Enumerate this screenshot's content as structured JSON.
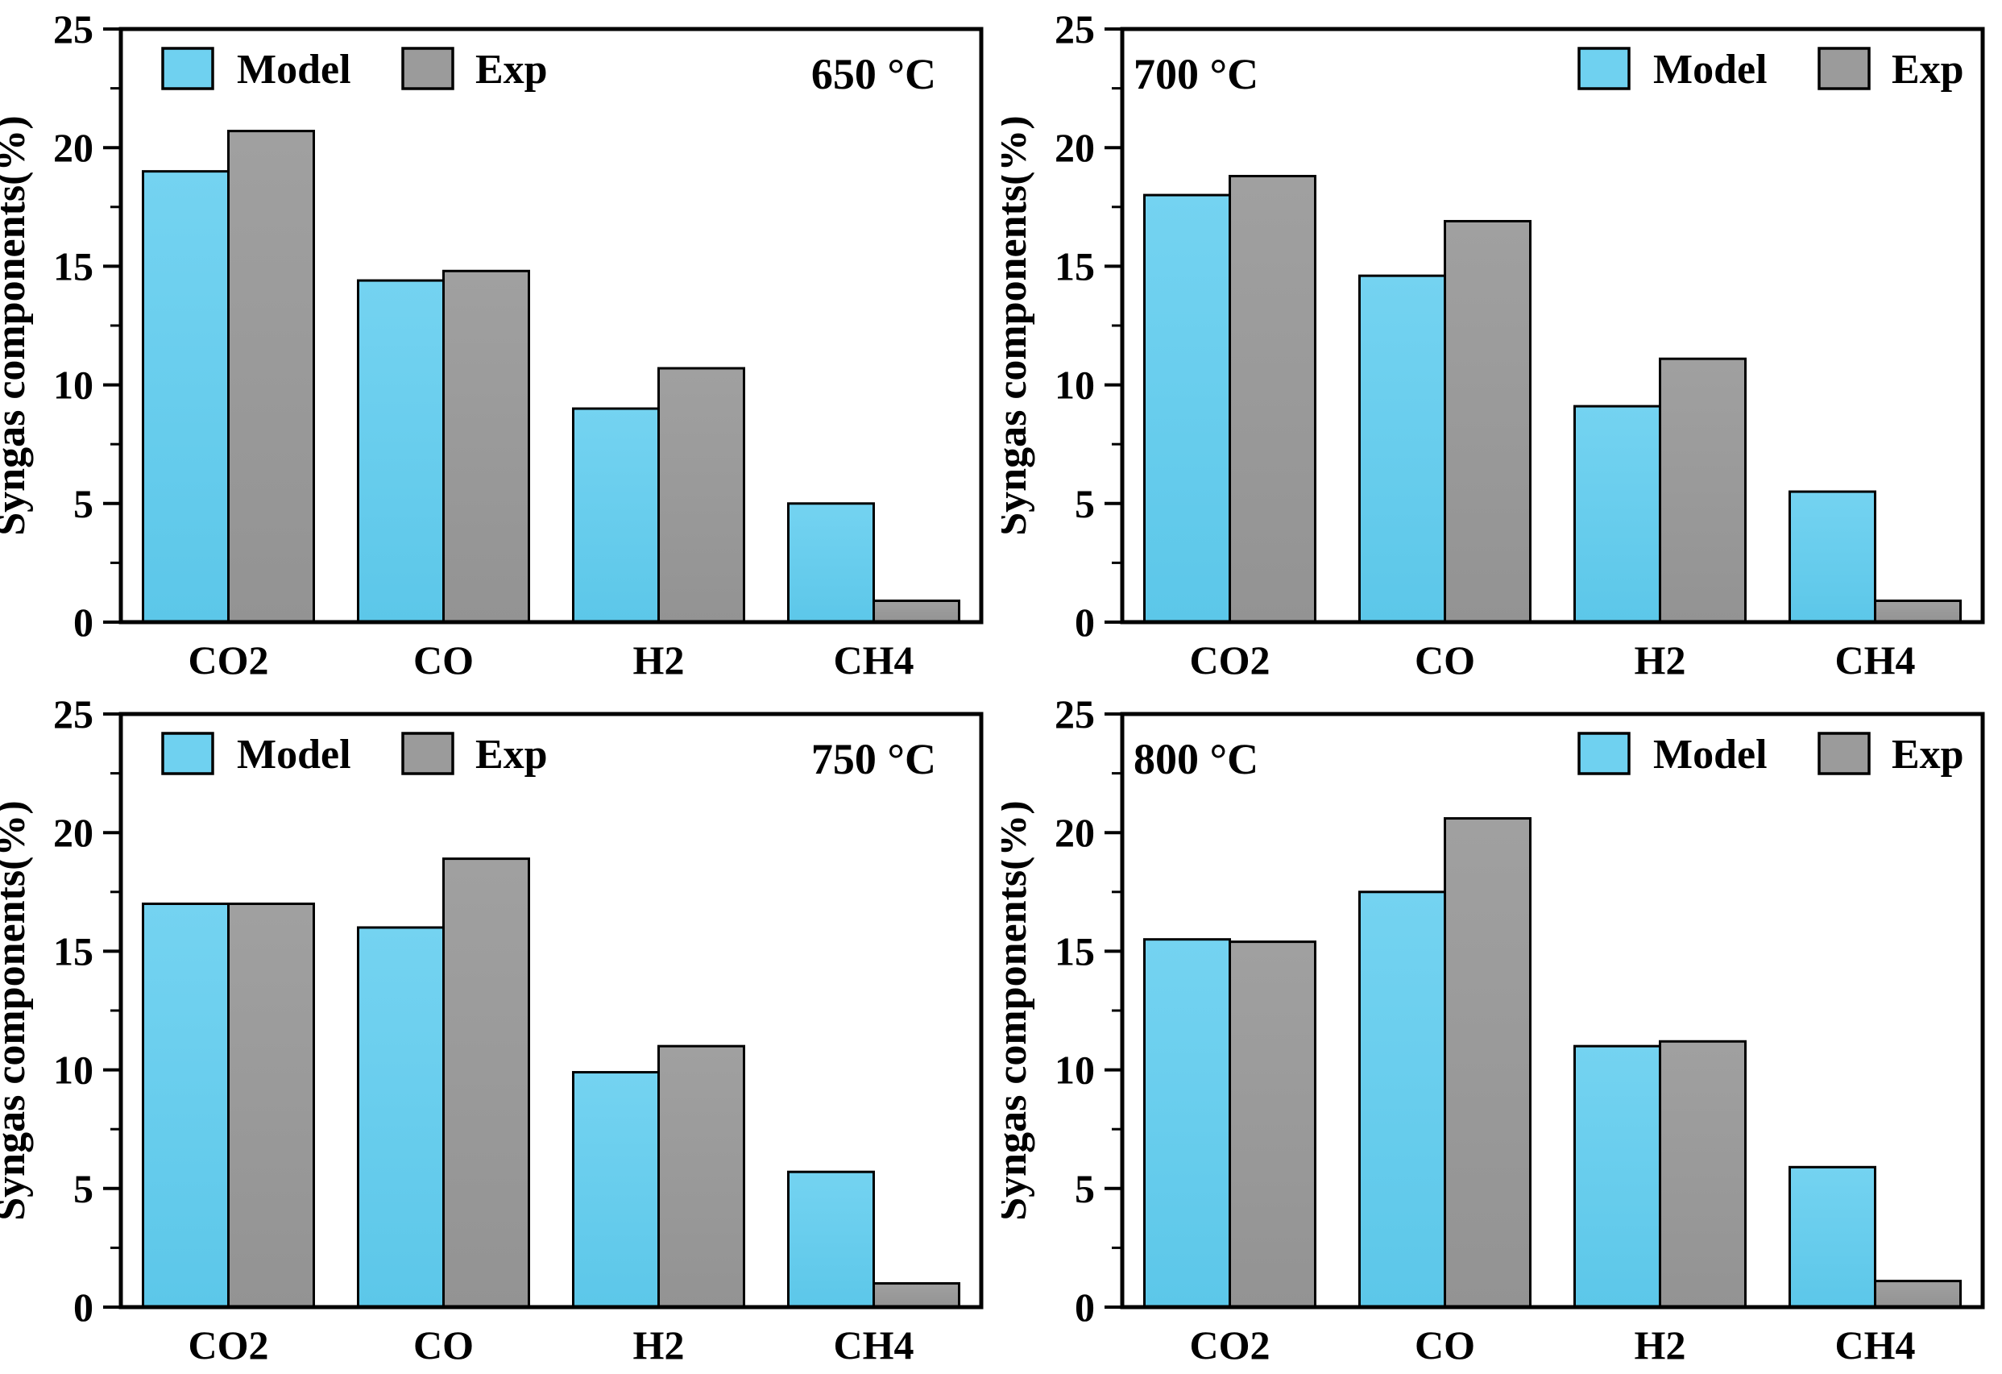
{
  "figure": {
    "ylabel": "Syngas components(%)",
    "legend": {
      "model_label": "Model",
      "exp_label": "Exp"
    },
    "colors": {
      "model_fill_top": "#74D3F1",
      "model_fill_bottom": "#5CC7E9",
      "model_legend_fill": "#6FD1F0",
      "exp_fill_top": "#A0A0A0",
      "exp_fill_bottom": "#939393",
      "exp_legend_fill": "#9B9B9B",
      "bar_edge": "#000000",
      "axis": "#000000",
      "background": "#FFFFFF"
    },
    "y_axis": {
      "min": 0,
      "max": 25,
      "major_ticks": [
        0,
        5,
        10,
        15,
        20,
        25
      ],
      "minor_step": 2.5
    }
  },
  "chart_data": [
    {
      "type": "bar",
      "title": "650 °C",
      "title_position": "top-right",
      "legend_position": "top-left",
      "legend_entries": [
        "Model",
        "Exp"
      ],
      "categories": [
        "CO2",
        "CO",
        "H2",
        "CH4"
      ],
      "series": [
        {
          "name": "Model",
          "values": [
            19.0,
            14.4,
            9.0,
            5.0
          ]
        },
        {
          "name": "Exp",
          "values": [
            20.7,
            14.8,
            10.7,
            0.9
          ]
        }
      ],
      "xlabel": "",
      "ylabel": "Syngas components(%)",
      "ylim": [
        0,
        25
      ],
      "grid": false
    },
    {
      "type": "bar",
      "title": "700 °C",
      "title_position": "top-left",
      "legend_position": "top-right",
      "legend_entries": [
        "Model",
        "Exp"
      ],
      "categories": [
        "CO2",
        "CO",
        "H2",
        "CH4"
      ],
      "series": [
        {
          "name": "Model",
          "values": [
            18.0,
            14.6,
            9.1,
            5.5
          ]
        },
        {
          "name": "Exp",
          "values": [
            18.8,
            16.9,
            11.1,
            0.9
          ]
        }
      ],
      "xlabel": "",
      "ylabel": "Syngas components(%)",
      "ylim": [
        0,
        25
      ],
      "grid": false
    },
    {
      "type": "bar",
      "title": "750 °C",
      "title_position": "top-right",
      "legend_position": "top-left",
      "legend_entries": [
        "Model",
        "Exp"
      ],
      "categories": [
        "CO2",
        "CO",
        "H2",
        "CH4"
      ],
      "series": [
        {
          "name": "Model",
          "values": [
            17.0,
            16.0,
            9.9,
            5.7
          ]
        },
        {
          "name": "Exp",
          "values": [
            17.0,
            18.9,
            11.0,
            1.0
          ]
        }
      ],
      "xlabel": "",
      "ylabel": "Syngas components(%)",
      "ylim": [
        0,
        25
      ],
      "grid": false
    },
    {
      "type": "bar",
      "title": "800 °C",
      "title_position": "top-left",
      "legend_position": "top-right",
      "legend_entries": [
        "Model",
        "Exp"
      ],
      "categories": [
        "CO2",
        "CO",
        "H2",
        "CH4"
      ],
      "series": [
        {
          "name": "Model",
          "values": [
            15.5,
            17.5,
            11.0,
            5.9
          ]
        },
        {
          "name": "Exp",
          "values": [
            15.4,
            20.6,
            11.2,
            1.1
          ]
        }
      ],
      "xlabel": "",
      "ylabel": "Syngas components(%)",
      "ylim": [
        0,
        25
      ],
      "grid": false
    }
  ]
}
